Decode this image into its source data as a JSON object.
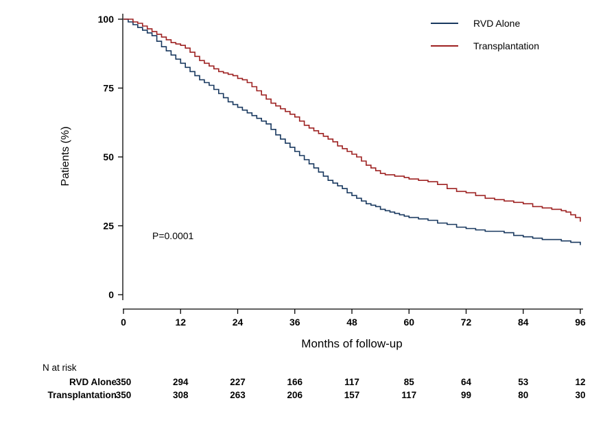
{
  "chart_data": {
    "type": "line",
    "subtype": "kaplan-meier-step",
    "title": "",
    "xlabel": "Months of follow-up",
    "ylabel": "Patients (%)",
    "xlim": [
      0,
      96
    ],
    "ylim": [
      0,
      100
    ],
    "x_ticks": [
      0,
      12,
      24,
      36,
      48,
      60,
      72,
      84,
      96
    ],
    "y_ticks": [
      0,
      25,
      50,
      75,
      100
    ],
    "grid": false,
    "legend_position": "top-right",
    "annotations": [
      {
        "text": "P=0.0001",
        "x": 7,
        "y": 23
      }
    ],
    "series": [
      {
        "name": "RVD Alone",
        "color": "#17375e",
        "points": [
          [
            0,
            100
          ],
          [
            1,
            99
          ],
          [
            2,
            98
          ],
          [
            3,
            97
          ],
          [
            4,
            96
          ],
          [
            5,
            95
          ],
          [
            6,
            94
          ],
          [
            7,
            92
          ],
          [
            8,
            90
          ],
          [
            9,
            88.5
          ],
          [
            10,
            87
          ],
          [
            11,
            85.5
          ],
          [
            12,
            84
          ],
          [
            13,
            82.5
          ],
          [
            14,
            81
          ],
          [
            15,
            79.5
          ],
          [
            16,
            78
          ],
          [
            17,
            77
          ],
          [
            18,
            76
          ],
          [
            19,
            74.5
          ],
          [
            20,
            73
          ],
          [
            21,
            71.5
          ],
          [
            22,
            70
          ],
          [
            23,
            69
          ],
          [
            24,
            68
          ],
          [
            25,
            67
          ],
          [
            26,
            66
          ],
          [
            27,
            65
          ],
          [
            28,
            64
          ],
          [
            29,
            63
          ],
          [
            30,
            62
          ],
          [
            31,
            60
          ],
          [
            32,
            58
          ],
          [
            33,
            56.5
          ],
          [
            34,
            55
          ],
          [
            35,
            53.5
          ],
          [
            36,
            52
          ],
          [
            37,
            50.5
          ],
          [
            38,
            49
          ],
          [
            39,
            47.5
          ],
          [
            40,
            46
          ],
          [
            41,
            44.5
          ],
          [
            42,
            43
          ],
          [
            43,
            41.5
          ],
          [
            44,
            40.5
          ],
          [
            45,
            39.5
          ],
          [
            46,
            38.5
          ],
          [
            47,
            37
          ],
          [
            48,
            36
          ],
          [
            49,
            35
          ],
          [
            50,
            34
          ],
          [
            51,
            33
          ],
          [
            52,
            32.5
          ],
          [
            53,
            32
          ],
          [
            54,
            31
          ],
          [
            55,
            30.5
          ],
          [
            56,
            30
          ],
          [
            57,
            29.5
          ],
          [
            58,
            29
          ],
          [
            59,
            28.5
          ],
          [
            60,
            28
          ],
          [
            62,
            27.5
          ],
          [
            64,
            27
          ],
          [
            66,
            26
          ],
          [
            68,
            25.5
          ],
          [
            70,
            24.5
          ],
          [
            72,
            24
          ],
          [
            74,
            23.5
          ],
          [
            76,
            23
          ],
          [
            78,
            23
          ],
          [
            80,
            22.5
          ],
          [
            82,
            21.5
          ],
          [
            84,
            21
          ],
          [
            86,
            20.5
          ],
          [
            88,
            20
          ],
          [
            90,
            20
          ],
          [
            92,
            19.5
          ],
          [
            94,
            19
          ],
          [
            96,
            18
          ]
        ]
      },
      {
        "name": "Transplantation",
        "color": "#9d2020",
        "points": [
          [
            0,
            100
          ],
          [
            2,
            99
          ],
          [
            3,
            98.5
          ],
          [
            4,
            97.5
          ],
          [
            5,
            96.5
          ],
          [
            6,
            95.5
          ],
          [
            7,
            94.5
          ],
          [
            8,
            93.5
          ],
          [
            9,
            92.5
          ],
          [
            10,
            91.5
          ],
          [
            11,
            91
          ],
          [
            12,
            90.5
          ],
          [
            13,
            89.5
          ],
          [
            14,
            88
          ],
          [
            15,
            86.5
          ],
          [
            16,
            85
          ],
          [
            17,
            84
          ],
          [
            18,
            83
          ],
          [
            19,
            82
          ],
          [
            20,
            81
          ],
          [
            21,
            80.5
          ],
          [
            22,
            80
          ],
          [
            23,
            79.5
          ],
          [
            24,
            78.5
          ],
          [
            25,
            78
          ],
          [
            26,
            77
          ],
          [
            27,
            75.5
          ],
          [
            28,
            74
          ],
          [
            29,
            72.5
          ],
          [
            30,
            71
          ],
          [
            31,
            69.5
          ],
          [
            32,
            68.5
          ],
          [
            33,
            67.5
          ],
          [
            34,
            66.5
          ],
          [
            35,
            65.5
          ],
          [
            36,
            64.5
          ],
          [
            37,
            63
          ],
          [
            38,
            61.5
          ],
          [
            39,
            60.5
          ],
          [
            40,
            59.5
          ],
          [
            41,
            58.5
          ],
          [
            42,
            57.5
          ],
          [
            43,
            56.5
          ],
          [
            44,
            55.5
          ],
          [
            45,
            54
          ],
          [
            46,
            53
          ],
          [
            47,
            52
          ],
          [
            48,
            51
          ],
          [
            49,
            50
          ],
          [
            50,
            48.5
          ],
          [
            51,
            47
          ],
          [
            52,
            46
          ],
          [
            53,
            45
          ],
          [
            54,
            44
          ],
          [
            55,
            43.5
          ],
          [
            56,
            43.5
          ],
          [
            57,
            43
          ],
          [
            58,
            43
          ],
          [
            59,
            42.5
          ],
          [
            60,
            42
          ],
          [
            62,
            41.5
          ],
          [
            64,
            41
          ],
          [
            66,
            40
          ],
          [
            68,
            38.5
          ],
          [
            70,
            37.5
          ],
          [
            72,
            37
          ],
          [
            74,
            36
          ],
          [
            76,
            35
          ],
          [
            78,
            34.5
          ],
          [
            80,
            34
          ],
          [
            82,
            33.5
          ],
          [
            84,
            33
          ],
          [
            86,
            32
          ],
          [
            88,
            31.5
          ],
          [
            90,
            31
          ],
          [
            92,
            30.5
          ],
          [
            93,
            30
          ],
          [
            94,
            29
          ],
          [
            95,
            28
          ],
          [
            96,
            26.5
          ]
        ]
      }
    ],
    "risk_table": {
      "label": "N at risk",
      "months": [
        0,
        12,
        24,
        36,
        48,
        60,
        72,
        84,
        96
      ],
      "rows": [
        {
          "label": "RVD Alone",
          "values": [
            350,
            294,
            227,
            166,
            117,
            85,
            64,
            53,
            12
          ]
        },
        {
          "label": "Transplantation",
          "values": [
            350,
            308,
            263,
            206,
            157,
            117,
            99,
            80,
            30
          ]
        }
      ]
    }
  }
}
